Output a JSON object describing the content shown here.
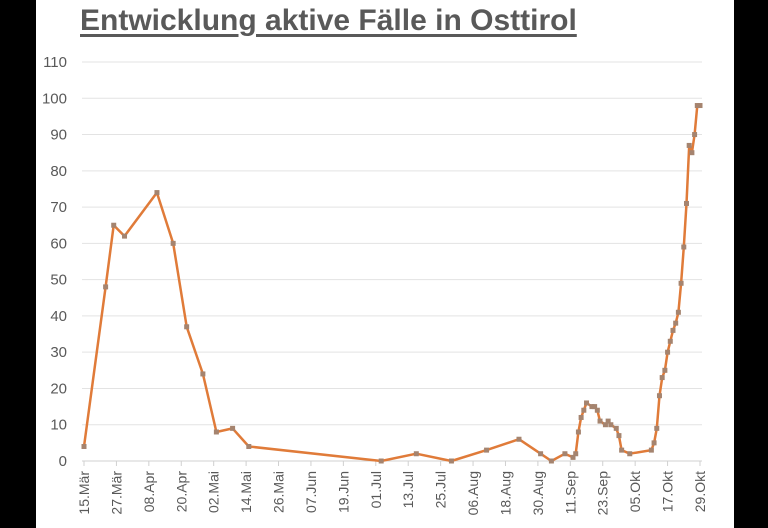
{
  "chart_data": {
    "type": "line",
    "title": "Entwicklung aktive Fälle in Osttirol",
    "xlabel": "",
    "ylabel": "",
    "ylim": [
      0,
      110
    ],
    "yticks": [
      0,
      10,
      20,
      30,
      40,
      50,
      60,
      70,
      80,
      90,
      100,
      110
    ],
    "grid": true,
    "legend": null,
    "line_color": "#E07B39",
    "marker_color": "#A5846F",
    "x_tick_labels": [
      "15.Mär",
      "27.Mär",
      "08.Apr",
      "20.Apr",
      "02.Mai",
      "14.Mai",
      "26.Mai",
      "07.Jun",
      "19.Jun",
      "01.Jul",
      "13.Jul",
      "25.Jul",
      "06.Aug",
      "18.Aug",
      "30.Aug",
      "11.Sep",
      "23.Sep",
      "05.Okt",
      "17.Okt",
      "29.Okt"
    ],
    "series": [
      {
        "name": "Aktive Fälle",
        "x": [
          "15.Mär",
          "23.Mär",
          "26.Mär",
          "30.Mär",
          "11.Apr",
          "17.Apr",
          "22.Apr",
          "28.Apr",
          "03.Mai",
          "09.Mai",
          "15.Mai",
          "03.Jul",
          "16.Jul",
          "29.Jul",
          "11.Aug",
          "23.Aug",
          "31.Aug",
          "04.Sep",
          "09.Sep",
          "12.Sep",
          "13.Sep",
          "14.Sep",
          "15.Sep",
          "16.Sep",
          "17.Sep",
          "19.Sep",
          "20.Sep",
          "21.Sep",
          "22.Sep",
          "24.Sep",
          "25.Sep",
          "26.Sep",
          "28.Sep",
          "29.Sep",
          "30.Sep",
          "03.Okt",
          "11.Okt",
          "12.Okt",
          "13.Okt",
          "14.Okt",
          "15.Okt",
          "16.Okt",
          "17.Okt",
          "18.Okt",
          "19.Okt",
          "20.Okt",
          "21.Okt",
          "22.Okt",
          "23.Okt",
          "24.Okt",
          "25.Okt",
          "26.Okt",
          "27.Okt",
          "28.Okt",
          "29.Okt"
        ],
        "values": [
          4,
          48,
          65,
          62,
          74,
          60,
          37,
          24,
          8,
          9,
          4,
          0,
          2,
          0,
          3,
          6,
          2,
          0,
          2,
          1,
          2,
          8,
          12,
          14,
          16,
          15,
          15,
          14,
          11,
          10,
          11,
          10,
          9,
          7,
          3,
          2,
          3,
          5,
          9,
          18,
          23,
          25,
          30,
          33,
          36,
          38,
          41,
          49,
          59,
          71,
          87,
          85,
          90,
          98,
          98
        ]
      }
    ]
  }
}
